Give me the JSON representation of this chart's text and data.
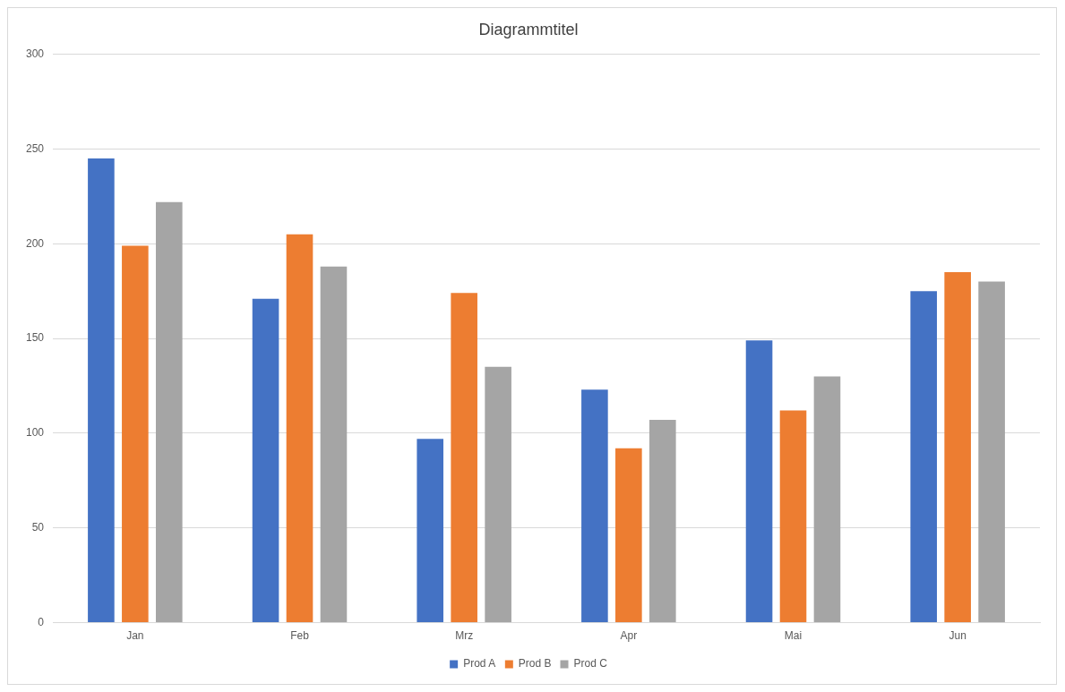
{
  "chart_data": {
    "type": "bar",
    "title": "Diagrammtitel",
    "categories": [
      "Jan",
      "Feb",
      "Mrz",
      "Apr",
      "Mai",
      "Jun"
    ],
    "series": [
      {
        "name": "Prod A",
        "color": "#4472c4",
        "values": [
          245,
          171,
          97,
          123,
          149,
          175
        ]
      },
      {
        "name": "Prod B",
        "color": "#ed7d31",
        "values": [
          199,
          205,
          174,
          92,
          112,
          185
        ]
      },
      {
        "name": "Prod C",
        "color": "#a5a5a5",
        "values": [
          222,
          188,
          135,
          107,
          130,
          180
        ]
      }
    ],
    "ylim": [
      0,
      300
    ],
    "yticks": [
      0,
      50,
      100,
      150,
      200,
      250,
      300
    ],
    "grid": "y",
    "legend": "bottom"
  }
}
